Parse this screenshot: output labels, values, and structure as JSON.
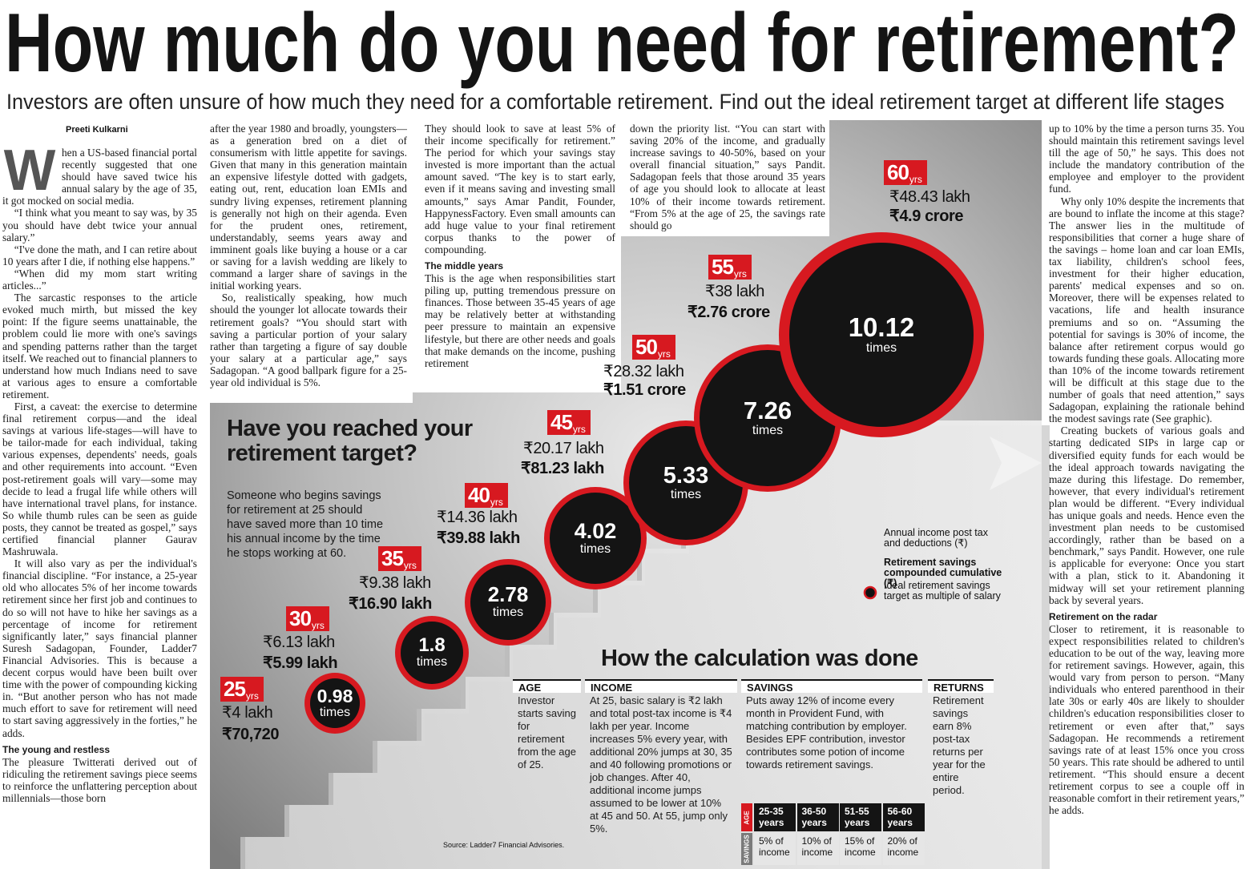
{
  "header": {
    "title": "How much do you need for retirement?",
    "subtitle": "Investors are often unsure of how much they need for a comfortable retirement. Find out the ideal retirement target at different life stages"
  },
  "article": {
    "byline": "Preeti Kulkarni",
    "drop_cap": "W",
    "columns": [
      [
        {
          "paragraphs": [
            "hen a US-based financial portal recently suggested that one should have saved twice his annual salary by the age of 35, it got mocked on social media.",
            "“I think what you meant to say was, by 35 you should have debt twice your annual salary.”",
            "“I've done the math, and I can retire about 10 years after I die, if nothing else happens.”",
            "“When did my mom start writing articles...”",
            "The sarcastic responses to the article evoked much mirth, but missed the key point: If the figure seems unattainable, the problem could lie more with one's savings and spending patterns rather than the target itself. We reached out to financial planners to understand how much Indians need to save at various ages to ensure a comfortable retirement.",
            "First, a caveat: the exercise to determine final retirement corpus—and the ideal savings at various life-stages—will have to be tailor-made for each individual, taking various expenses, dependents' needs, goals and other requirements into account. “Even post-retirement goals will vary—some may decide to lead a frugal life while others will have international travel plans, for instance. So while thumb rules can be seen as guide posts, they cannot be treated as gospel,” says certified financial planner Gaurav Mashruwala.",
            "It will also vary as per the individual's financial discipline. “For instance, a 25-year old who allocates 5% of her income towards retirement since her first job and continues to do so will not have to hike her savings as a percentage of income for retirement significantly later,” says financial planner Suresh Sadagopan, Founder, Ladder7 Financial Advisories. This is because a decent corpus would have been built over time with the power of compounding kicking in. “But another person who has not made much effort to save for retirement will need to start saving aggressively in the forties,” he adds."
          ]
        },
        {
          "heading": "The young and restless",
          "paragraphs": [
            "The pleasure Twitterati derived out of ridiculing the retirement savings piece seems to reinforce the unflattering perception about millennials—those born"
          ]
        }
      ],
      [
        {
          "paragraphs": [
            "after the year 1980 and broadly, youngsters—as a generation bred on a diet of consumerism with little appetite for savings. Given that many in this generation maintain an expensive lifestyle dotted with gadgets, eating out, rent, education loan EMIs and sundry living expenses, retirement planning is generally not high on their agenda. Even for the prudent ones, retirement, understandably, seems years away and imminent goals like buying a house or a car or saving for a lavish wedding are likely to command a larger share of savings in the initial working years.",
            "So, realistically speaking, how much should the younger lot allocate towards their retirement goals? “You should start with saving a particular portion of your salary rather than targeting a figure of say double your salary at a particular age,” says Sadagopan. “A good ballpark figure for a 25-year old individual is 5%."
          ]
        }
      ],
      [
        {
          "paragraphs": [
            "They should look to save at least 5% of their income specifically for retirement.” The period for which your savings stay invested is more important than the actual amount saved. “The key is to start early, even if it means saving and investing small amounts,” says Amar Pandit, Founder, HappynessFactory. Even small amounts can add huge value to your final retirement corpus thanks to the power of compounding."
          ]
        },
        {
          "heading": "The middle years",
          "paragraphs": [
            "This is the age when responsibilities start piling up, putting tremendous pressure on finances. Those between 35-45 years of age may be relatively better at withstanding peer pressure to maintain an expensive lifestyle, but there are other needs and goals that make demands on the income, pushing retirement"
          ]
        }
      ],
      [
        {
          "paragraphs": [
            "down the priority list. “You can start with saving 20% of the income, and gradually increase savings to 40-50%, based on your overall financial situation,” says Pandit. Sadagopan feels that those around 35 years of age you should look to allocate at least 10% of their income towards retirement. “From 5% at the age of 25, the savings rate should go"
          ]
        }
      ],
      [
        {
          "paragraphs": [
            "up to 10% by the time a person turns 35. You should maintain this retirement savings level till the age of 50,” he says. This does not include the mandatory contribution of the employee and employer to the provident fund.",
            "Why only 10% despite the increments that are bound to inflate the income at this stage? The answer lies in the multitude of responsibilities that corner a huge share of the savings – home loan and car loan EMIs, tax liability, children's school fees, investment for their higher education, parents' medical expenses and so on. Moreover, there will be expenses related to vacations, life and health insurance premiums and so on. “Assuming the potential for savings is 30% of income, the balance after retirement corpus would go towards funding these goals. Allocating more than 10% of the income towards retirement will be difficult at this stage due to the number of goals that need attention,” says Sadagopan, explaining the rationale behind the modest savings rate (See graphic).",
            "Creating buckets of various goals and starting dedicated SIPs in large cap or diversified equity funds for each would be the ideal approach towards navigating the maze during this lifestage. Do remember, however, that every individual's retirement plan would be different. “Every individual has unique goals and needs. Hence even the investment plan needs to be customised accordingly, rather than be based on a benchmark,” says Pandit. However, one rule is applicable for everyone: Once you start with a plan, stick to it. Abandoning it midway will set your retirement planning back by several years."
          ]
        },
        {
          "heading": "Retirement on the radar",
          "paragraphs": [
            "Closer to retirement, it is reasonable to expect responsibilities related to children's education to be out of the way, leaving more for retirement savings. However, again, this would vary from person to person. “Many individuals who entered parenthood in their late 30s or early 40s are likely to shoulder children's education responsibilities closer to retirement or even after that,” says Sadagopan. He recommends a retirement savings rate of at least 15% once you cross 50 years. This rate should be adhered to until retirement. “This should ensure a decent retirement corpus to see a couple off in reasonable comfort in their retirement years,” he adds."
          ]
        }
      ]
    ]
  },
  "graphic": {
    "title": "Have you reached your retirement target?",
    "intro": "Someone who begins savings for retirement at 25 should have saved more than 10 time his annual income by the time he stops working at 60.",
    "stages": [
      {
        "age": "25",
        "unit": "yrs",
        "income": "₹4 lakh",
        "corpus": "₹70,720"
      },
      {
        "age": "30",
        "unit": "yrs",
        "income": "₹6.13 lakh",
        "corpus": "₹5.99 lakh",
        "multiple": "0.98",
        "times": "times"
      },
      {
        "age": "35",
        "unit": "yrs",
        "income": "₹9.38 lakh",
        "corpus": "₹16.90 lakh",
        "multiple": "1.8",
        "times": "times"
      },
      {
        "age": "40",
        "unit": "yrs",
        "income": "₹14.36 lakh",
        "corpus": "₹39.88 lakh",
        "multiple": "2.78",
        "times": "times"
      },
      {
        "age": "45",
        "unit": "yrs",
        "income": "₹20.17 lakh",
        "corpus": "₹81.23 lakh",
        "multiple": "4.02",
        "times": "times"
      },
      {
        "age": "50",
        "unit": "yrs",
        "income": "₹28.32 lakh",
        "corpus": "₹1.51 crore",
        "multiple": "5.33",
        "times": "times"
      },
      {
        "age": "55",
        "unit": "yrs",
        "income": "₹38 lakh",
        "corpus": "₹2.76 crore",
        "multiple": "7.26",
        "times": "times"
      },
      {
        "age": "60",
        "unit": "yrs",
        "income": "₹48.43 lakh",
        "corpus": "₹4.9 crore",
        "multiple": "10.12",
        "times": "times"
      }
    ],
    "legend": [
      "Annual income post tax and deductions (₹)",
      "Retirement savings compounded cumulative (₹)",
      "Ideal retirement savings target as multiple of salary"
    ],
    "calc": {
      "title": "How the calculation was done",
      "columns": [
        {
          "header": "AGE",
          "text": "Investor starts saving for retirement from the age of 25."
        },
        {
          "header": "INCOME",
          "text": "At 25, basic salary is ₹2 lakh and total post-tax income is ₹4 lakh per year. Income increases 5% every year, with additional 20% jumps at 30, 35 and 40 following promotions or job changes. After 40, additional income jumps assumed to be lower at 10% at 45 and 50. At 55, jump only 5%."
        },
        {
          "header": "SAVINGS",
          "text": "Puts away 12% of income every month in Provident Fund, with matching contribution by employer. Besides EPF contribution, investor contributes some potion of income towards retirement savings."
        },
        {
          "header": "RETURNS",
          "text": "Retirement savings earn 8% post-tax returns per year for the entire period."
        }
      ],
      "savings_table": {
        "row_labels": [
          "AGE",
          "SAVINGS"
        ],
        "ages": [
          "25-35 years",
          "36-50 years",
          "51-55 years",
          "56-60 years"
        ],
        "rates": [
          "5% of income",
          "10% of income",
          "15% of income",
          "20% of income"
        ]
      }
    },
    "source": "Source: Ladder7 Financial Advisories."
  }
}
